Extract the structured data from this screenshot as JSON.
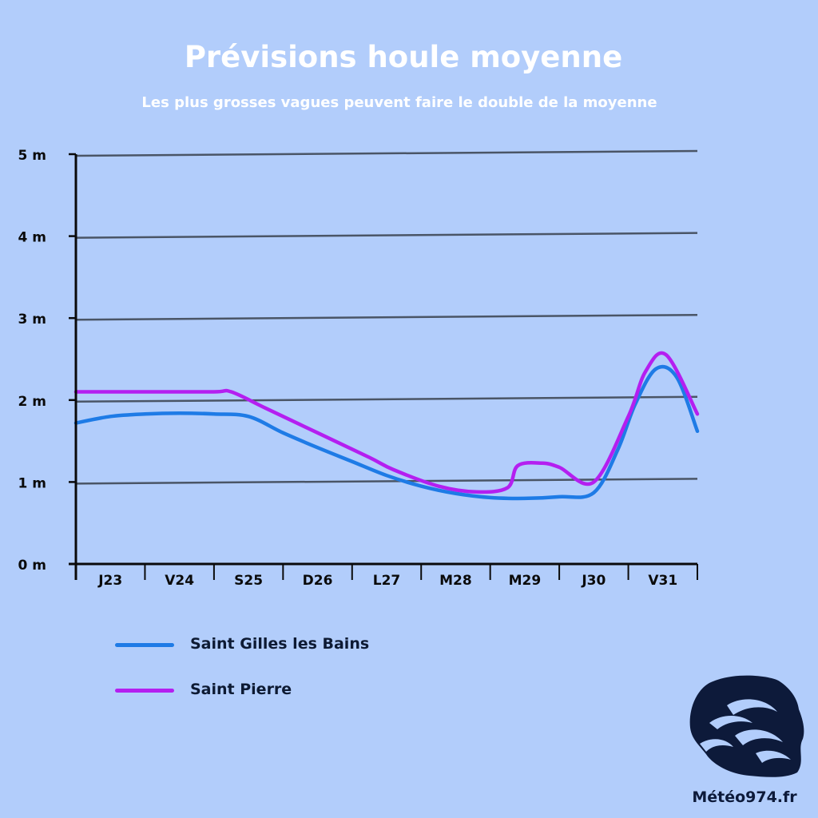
{
  "title": "Prévisions houle moyenne",
  "subtitle": "Les plus grosses vagues peuvent faire le double de la moyenne",
  "colors": {
    "background": "#b2cdfb",
    "grid": "#4a5566",
    "axis": "#0a0a0a",
    "saint_gilles": "#1e7be6",
    "saint_pierre": "#b41ff0",
    "logo": "#0d1a3a"
  },
  "legend": [
    {
      "name": "Saint Gilles les Bains",
      "color": "#1e7be6"
    },
    {
      "name": "Saint Pierre",
      "color": "#b41ff0"
    }
  ],
  "logo": {
    "text": "Météo974.fr",
    "icon": "meteo974-logo-icon"
  },
  "chart_data": {
    "type": "line",
    "title": "Prévisions houle moyenne",
    "subtitle": "Les plus grosses vagues peuvent faire le double de la moyenne",
    "categories": [
      "J23",
      "V24",
      "S25",
      "D26",
      "L27",
      "M28",
      "M29",
      "J30",
      "V31"
    ],
    "y_ticks": [
      "0 m",
      "1 m",
      "2 m",
      "3 m",
      "4 m",
      "5 m"
    ],
    "ylim": [
      0,
      5
    ],
    "xlim": [
      0,
      9
    ],
    "grid": true,
    "legend_position": "bottom-left",
    "series": [
      {
        "name": "Saint Gilles les Bains",
        "color": "#1e7be6",
        "x": [
          0,
          0.5,
          1,
          1.5,
          2,
          2.5,
          3,
          3.5,
          4,
          4.5,
          5,
          5.5,
          6,
          6.5,
          7,
          7.5,
          7.85,
          8.1,
          8.4,
          8.7,
          9
        ],
        "y": [
          1.72,
          1.8,
          1.83,
          1.84,
          1.83,
          1.8,
          1.6,
          1.42,
          1.25,
          1.08,
          0.95,
          0.86,
          0.81,
          0.8,
          0.82,
          0.87,
          1.4,
          1.95,
          2.38,
          2.28,
          1.62
        ]
      },
      {
        "name": "Saint Pierre",
        "color": "#b41ff0",
        "x": [
          0,
          1,
          2,
          2.25,
          2.75,
          3.5,
          4.25,
          4.6,
          5.25,
          5.8,
          6.25,
          6.4,
          6.75,
          7.0,
          7.5,
          8.0,
          8.25,
          8.55,
          9
        ],
        "y": [
          2.1,
          2.1,
          2.1,
          2.1,
          1.9,
          1.6,
          1.3,
          1.15,
          0.95,
          0.88,
          0.93,
          1.2,
          1.23,
          1.18,
          1.0,
          1.8,
          2.35,
          2.55,
          1.83
        ]
      }
    ]
  }
}
